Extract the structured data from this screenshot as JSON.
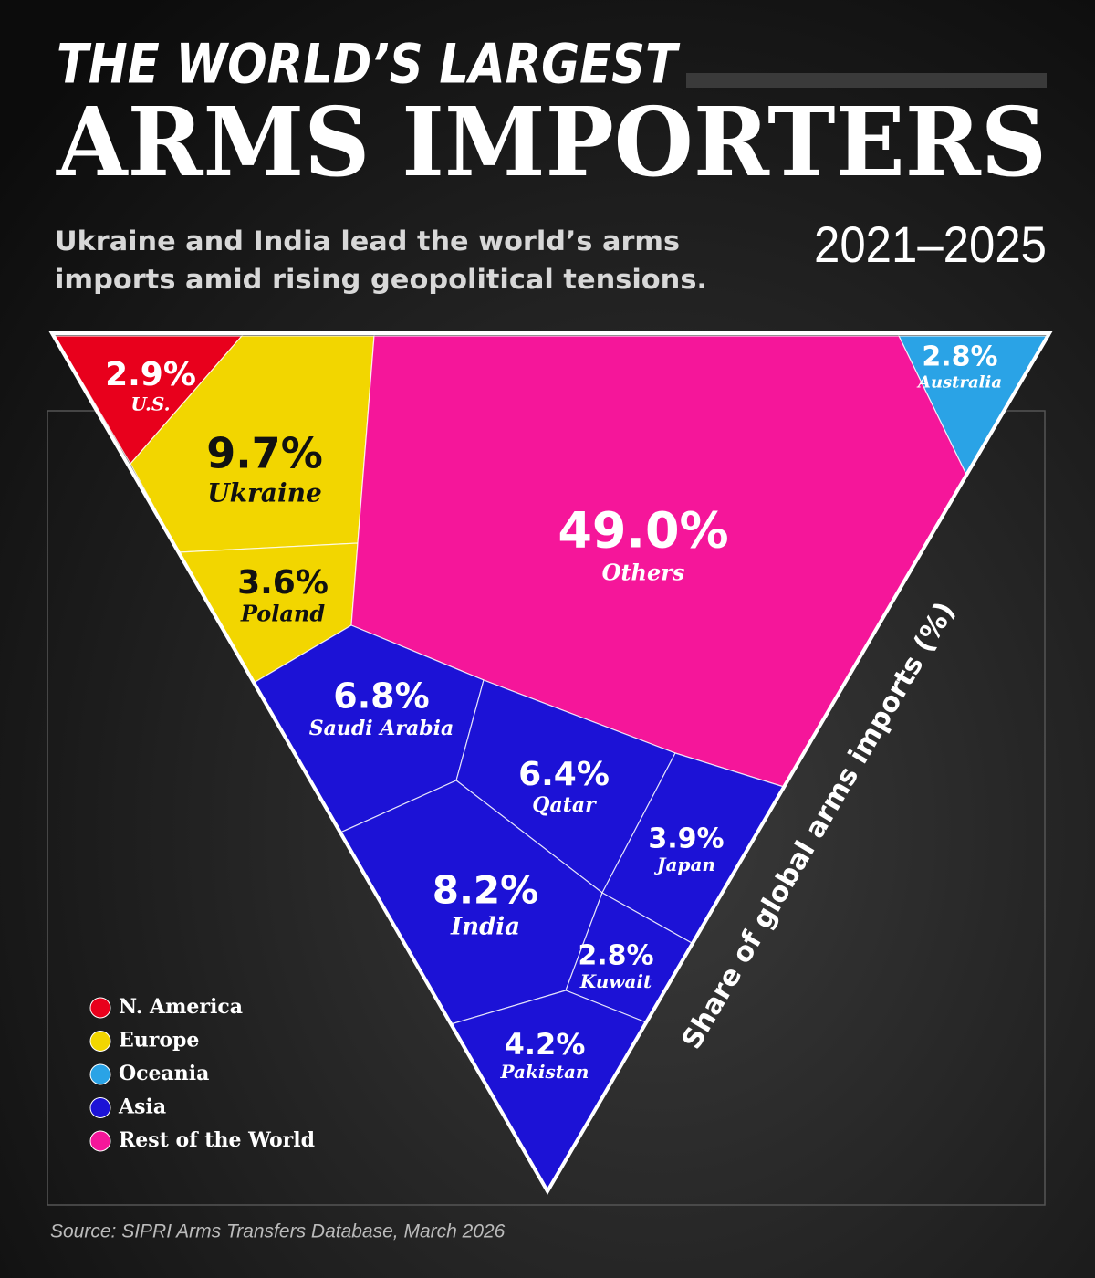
{
  "chart_data": {
    "type": "voronoi-treemap",
    "title_lines": [
      "THE WORLD’S LARGEST",
      "ARMS IMPORTERS"
    ],
    "period": "2021–2025",
    "subtitle_lines": [
      "Ukraine and India lead the world’s arms",
      "imports amid rising geopolitical tensions."
    ],
    "axis_label": "Share of global arms imports (%)",
    "source": "Source: SIPRI Arms Transfers Database, March 2026",
    "groups": [
      {
        "name": "N. America",
        "color": "#e8001c",
        "text_color": "#ffffff"
      },
      {
        "name": "Europe",
        "color": "#f2d600",
        "text_color": "#111111"
      },
      {
        "name": "Oceania",
        "color": "#2aa3e6",
        "text_color": "#ffffff"
      },
      {
        "name": "Asia",
        "color": "#1c12d6",
        "text_color": "#ffffff"
      },
      {
        "name": "Rest of the World",
        "color": "#f5169a",
        "text_color": "#ffffff"
      }
    ],
    "categories": [
      "U.S.",
      "Ukraine",
      "Poland",
      "Australia",
      "Others",
      "Saudi Arabia",
      "Qatar",
      "India",
      "Japan",
      "Kuwait",
      "Pakistan"
    ],
    "group_of": [
      0,
      1,
      1,
      2,
      4,
      3,
      3,
      3,
      3,
      3,
      3
    ],
    "values": [
      2.9,
      9.7,
      3.6,
      2.8,
      49.0,
      6.8,
      6.4,
      8.2,
      3.9,
      2.8,
      4.2
    ],
    "value_labels": [
      "2.9%",
      "9.7%",
      "3.6%",
      "2.8%",
      "49.0%",
      "6.8%",
      "6.4%",
      "8.2%",
      "3.9%",
      "2.8%",
      "4.2%"
    ]
  }
}
